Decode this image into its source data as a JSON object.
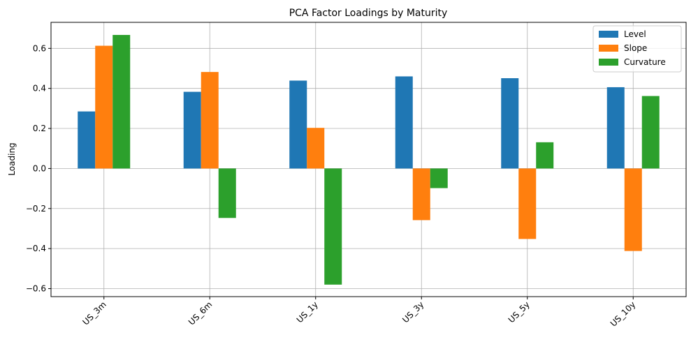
{
  "chart_data": {
    "type": "bar",
    "title": "PCA Factor Loadings by Maturity",
    "xlabel": "",
    "ylabel": "Loading",
    "categories": [
      "US_3m",
      "US_6m",
      "US_1y",
      "US_3y",
      "US_5y",
      "US_10y"
    ],
    "series": [
      {
        "name": "Level",
        "color": "#1f77b4",
        "values": [
          0.285,
          0.383,
          0.439,
          0.46,
          0.451,
          0.406
        ]
      },
      {
        "name": "Slope",
        "color": "#ff7f0e",
        "values": [
          0.613,
          0.482,
          0.203,
          -0.258,
          -0.352,
          -0.412
        ]
      },
      {
        "name": "Curvature",
        "color": "#2ca02c",
        "values": [
          0.667,
          -0.247,
          -0.58,
          -0.098,
          0.131,
          0.362
        ]
      }
    ],
    "ylim": [
      -0.64,
      0.73
    ],
    "yticks": [
      -0.6,
      -0.4,
      -0.2,
      0.0,
      0.2,
      0.4,
      0.6
    ],
    "ytick_labels": [
      "−0.6",
      "−0.4",
      "−0.2",
      "0.0",
      "0.2",
      "0.4",
      "0.6"
    ],
    "grid": true,
    "legend_position": "top-right"
  }
}
